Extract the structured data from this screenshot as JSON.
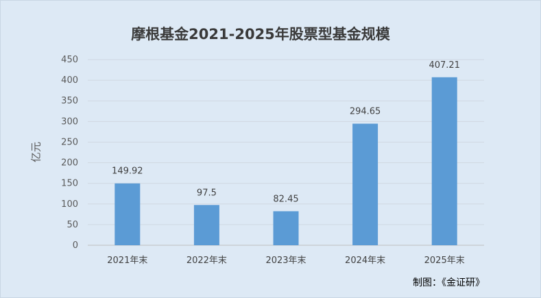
{
  "chart_data": {
    "type": "bar",
    "title": "摩根基金2021-2025年股票型基金规模",
    "xlabel": "",
    "ylabel": "亿元",
    "categories": [
      "2021年末",
      "2022年末",
      "2023年末",
      "2024年末",
      "2025年末"
    ],
    "values": [
      149.92,
      97.5,
      82.45,
      294.65,
      407.21
    ],
    "data_labels": [
      "149.92",
      "97.5",
      "82.45",
      "294.65",
      "407.21"
    ],
    "ylim": [
      0,
      450
    ],
    "yticks": [
      0,
      50,
      100,
      150,
      200,
      250,
      300,
      350,
      400,
      450
    ],
    "grid": true,
    "legend": "none",
    "bar_color": "#5b9bd5"
  },
  "credit": "制图：《金证研》"
}
